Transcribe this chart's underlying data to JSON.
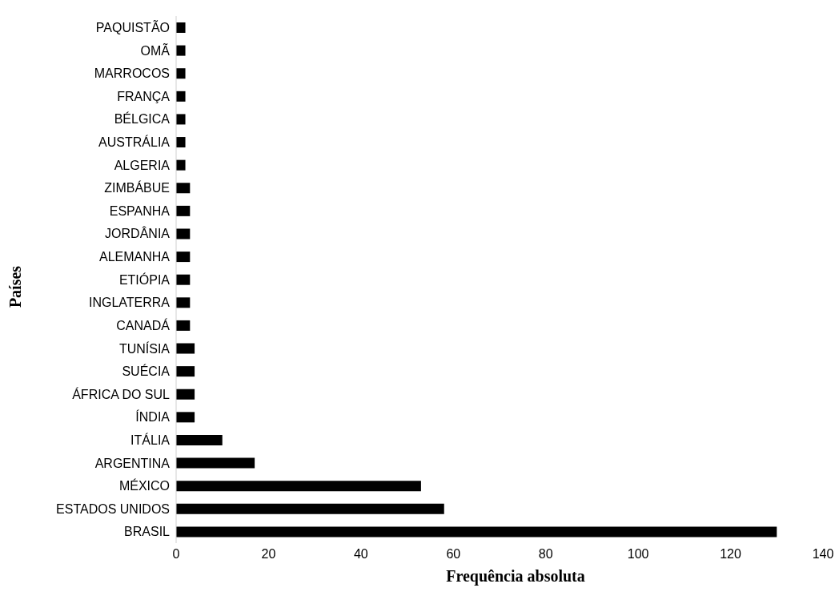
{
  "chart_data": {
    "type": "bar",
    "orientation": "horizontal",
    "xlabel": "Frequência absoluta",
    "ylabel": "Países",
    "categories": [
      "PAQUISTÃO",
      "OMÃ",
      "MARROCOS",
      "FRANÇA",
      "BÉLGICA",
      "AUSTRÁLIA",
      "ALGERIA",
      "ZIMBÁBUE",
      "ESPANHA",
      "JORDÂNIA",
      "ALEMANHA",
      "ETIÓPIA",
      "INGLATERRA",
      "CANADÁ",
      "TUNÍSIA",
      "SUÉCIA",
      "ÁFRICA DO SUL",
      "ÍNDIA",
      "ITÁLIA",
      "ARGENTINA",
      "MÉXICO",
      "ESTADOS UNIDOS",
      "BRASIL"
    ],
    "values": [
      2,
      2,
      2,
      2,
      2,
      2,
      2,
      3,
      3,
      3,
      3,
      3,
      3,
      3,
      4,
      4,
      4,
      4,
      10,
      17,
      53,
      58,
      130
    ],
    "color": "#000000",
    "xlim": [
      0,
      140
    ],
    "xticks": [
      0,
      20,
      40,
      60,
      80,
      100,
      120,
      140
    ],
    "grid": false,
    "legend": false
  }
}
